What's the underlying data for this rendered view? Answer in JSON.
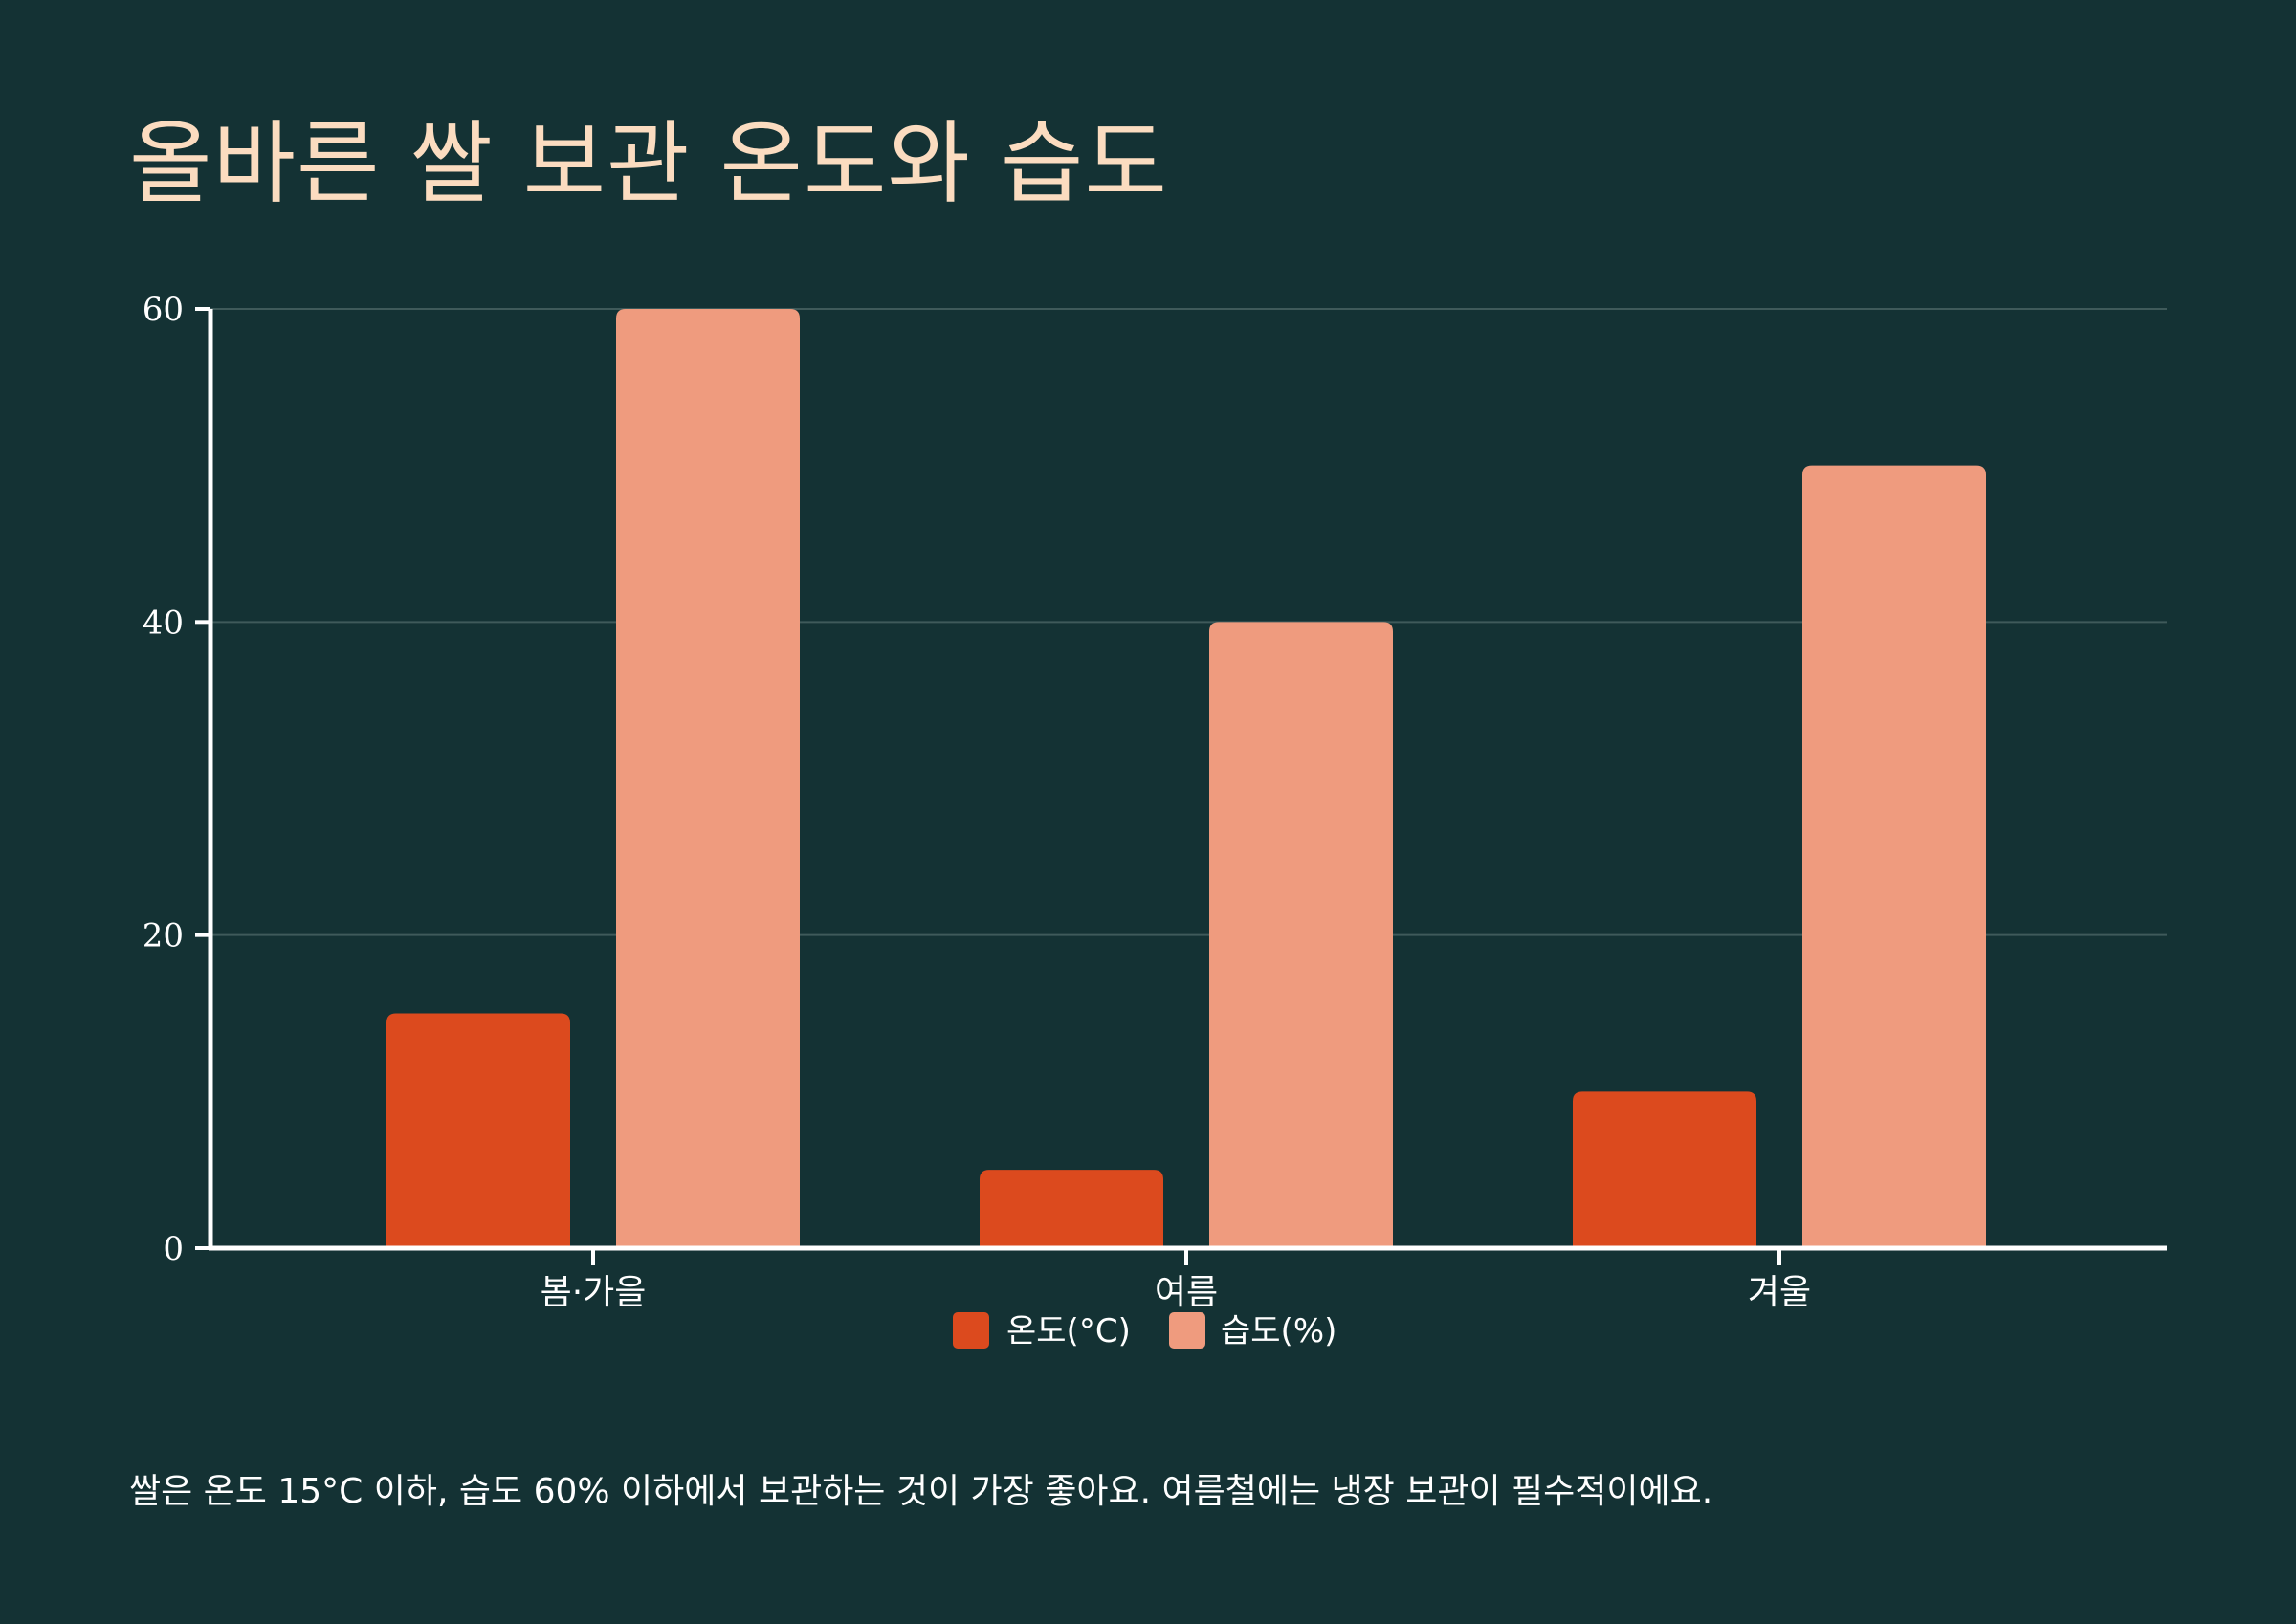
{
  "title": "올바른 쌀 보관 온도와 습도",
  "footnote": "쌀은 온도 15°C 이하, 습도 60% 이하에서 보관하는 것이 가장 좋아요. 여름철에는 냉장 보관이 필수적이에요.",
  "colors": {
    "background": "#143234",
    "title": "#fbdcc0",
    "axis": "#ffffff",
    "grid": "#3f5a5a",
    "temperature": "#dc4a1e",
    "humidity": "#ef9b7e"
  },
  "chart_data": {
    "type": "bar",
    "categories": [
      "봄·가을",
      "여름",
      "겨울"
    ],
    "series": [
      {
        "name": "온도(°C)",
        "values": [
          15,
          5,
          10
        ]
      },
      {
        "name": "습도(%)",
        "values": [
          60,
          40,
          50
        ]
      }
    ],
    "ylim": [
      0,
      60
    ],
    "yticks": [
      "0",
      "20",
      "40",
      "60"
    ],
    "grid": true,
    "legend": "bottom-center",
    "xlabel": "",
    "ylabel": ""
  }
}
